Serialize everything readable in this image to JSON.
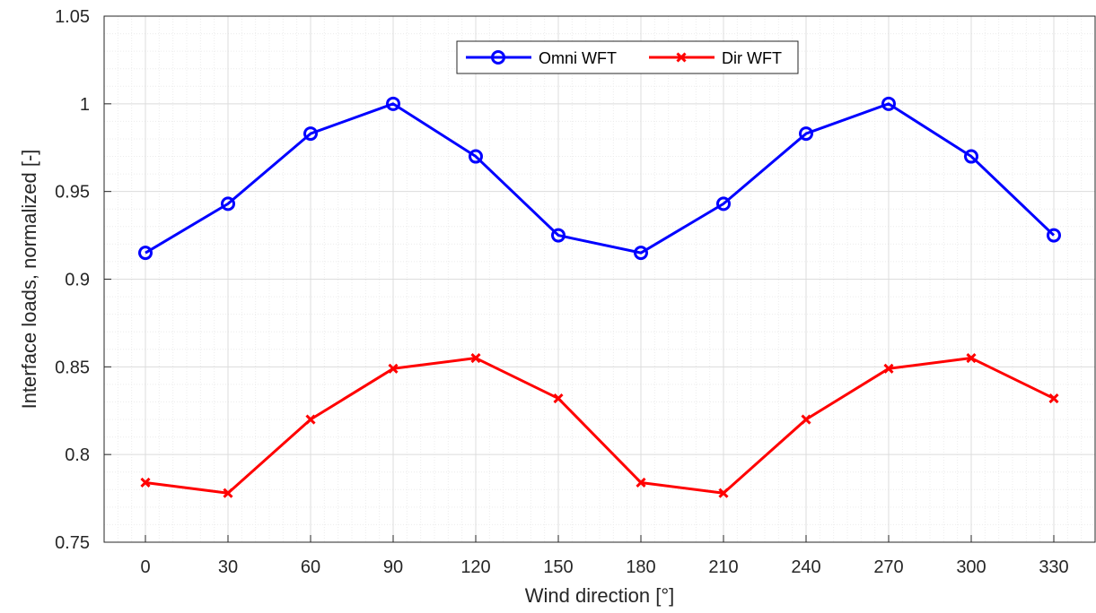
{
  "chart_data": {
    "type": "line",
    "x": [
      0,
      30,
      60,
      90,
      120,
      150,
      180,
      210,
      240,
      270,
      300,
      330
    ],
    "series": [
      {
        "name": "Omni WFT",
        "color": "#0000ff",
        "marker": "circle",
        "values": [
          0.915,
          0.943,
          0.983,
          1.0,
          0.97,
          0.925,
          0.915,
          0.943,
          0.983,
          1.0,
          0.97,
          0.925
        ]
      },
      {
        "name": "Dir WFT",
        "color": "#ff0000",
        "marker": "x",
        "values": [
          0.784,
          0.778,
          0.82,
          0.849,
          0.855,
          0.832,
          0.784,
          0.778,
          0.82,
          0.849,
          0.855,
          0.832
        ]
      }
    ],
    "xlabel": "Wind direction [°]",
    "ylabel": "Interface loads, normalized [-]",
    "xlim": [
      -15,
      345
    ],
    "ylim": [
      0.75,
      1.05
    ],
    "xticks": [
      "0",
      "30",
      "60",
      "90",
      "120",
      "150",
      "180",
      "210",
      "240",
      "270",
      "300",
      "330"
    ],
    "yticks": [
      "0.75",
      "0.8",
      "0.85",
      "0.9",
      "0.95",
      "1",
      "1.05"
    ],
    "grid": true,
    "minor_grid": true,
    "legend_position": "top-center"
  }
}
